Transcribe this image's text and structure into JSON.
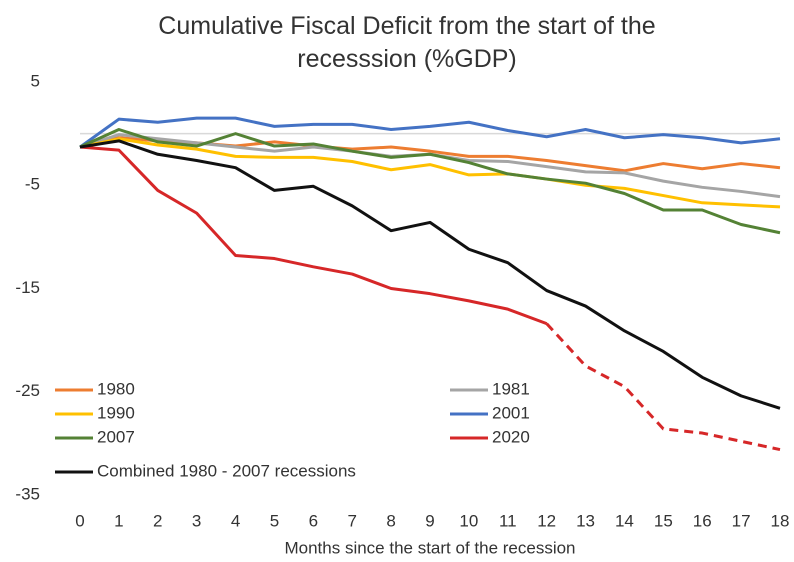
{
  "chart_data": {
    "type": "line",
    "title": "Cumulative Fiscal Deficit from the start of the recesssion (%GDP)",
    "x_label": "Months since the start of the recession",
    "x": [
      0,
      1,
      2,
      3,
      4,
      5,
      6,
      7,
      8,
      9,
      10,
      11,
      12,
      13,
      14,
      15,
      16,
      17,
      18
    ],
    "xlim": [
      0,
      18
    ],
    "xticks": [
      0,
      1,
      2,
      3,
      4,
      5,
      6,
      7,
      8,
      9,
      10,
      11,
      12,
      13,
      14,
      15,
      16,
      17,
      18
    ],
    "ylim": [
      -35,
      5
    ],
    "yticks": [
      5,
      -5,
      -15,
      -25,
      -35
    ],
    "legend": "lower left",
    "series": [
      {
        "name": "1980",
        "color": "#ed7d31",
        "values": [
          -1.3,
          -0.4,
          -0.7,
          -0.9,
          -1.2,
          -0.8,
          -1.2,
          -1.5,
          -1.3,
          -1.7,
          -2.2,
          -2.2,
          -2.6,
          -3.1,
          -3.6,
          -2.9,
          -3.4,
          -2.9,
          -3.3
        ]
      },
      {
        "name": "1981",
        "color": "#a5a5a5",
        "values": [
          -1.3,
          -0.1,
          -0.5,
          -0.9,
          -1.3,
          -1.7,
          -1.3,
          -1.7,
          -2.2,
          -2.0,
          -2.6,
          -2.7,
          -3.2,
          -3.7,
          -3.8,
          -4.6,
          -5.2,
          -5.6,
          -6.1
        ]
      },
      {
        "name": "1990",
        "color": "#ffc000",
        "values": [
          -1.3,
          -0.5,
          -1.1,
          -1.5,
          -2.2,
          -2.3,
          -2.3,
          -2.7,
          -3.5,
          -3.0,
          -4.0,
          -3.9,
          -4.4,
          -5.0,
          -5.3,
          -6.0,
          -6.7,
          -6.9,
          -7.1
        ]
      },
      {
        "name": "2001",
        "color": "#4472c4",
        "values": [
          -1.3,
          1.4,
          1.1,
          1.5,
          1.5,
          0.7,
          0.9,
          0.9,
          0.4,
          0.7,
          1.1,
          0.3,
          -0.3,
          0.4,
          -0.4,
          -0.1,
          -0.4,
          -0.9,
          -0.5
        ]
      },
      {
        "name": "2007",
        "color": "#548235",
        "values": [
          -1.3,
          0.4,
          -0.8,
          -1.2,
          0.0,
          -1.2,
          -1.0,
          -1.7,
          -2.3,
          -2.0,
          -2.8,
          -3.9,
          -4.4,
          -4.8,
          -5.8,
          -7.4,
          -7.4,
          -8.8,
          -9.6
        ]
      },
      {
        "name": "2020",
        "color": "#d62728",
        "dashed_after": 12,
        "values": [
          -1.3,
          -1.6,
          -5.5,
          -7.7,
          -11.8,
          -12.1,
          -12.9,
          -13.6,
          -15.0,
          -15.5,
          -16.2,
          -17.0,
          -18.4,
          -22.5,
          -24.5,
          -28.6,
          -29.0,
          -29.8,
          -30.6
        ]
      },
      {
        "name": "Combined 1980 - 2007 recessions",
        "color": "#111111",
        "values": [
          -1.3,
          -0.7,
          -2.0,
          -2.6,
          -3.3,
          -5.5,
          -5.1,
          -7.0,
          -9.4,
          -8.6,
          -11.2,
          -12.5,
          -15.2,
          -16.7,
          -19.1,
          -21.1,
          -23.6,
          -25.4,
          -26.6
        ]
      }
    ]
  }
}
